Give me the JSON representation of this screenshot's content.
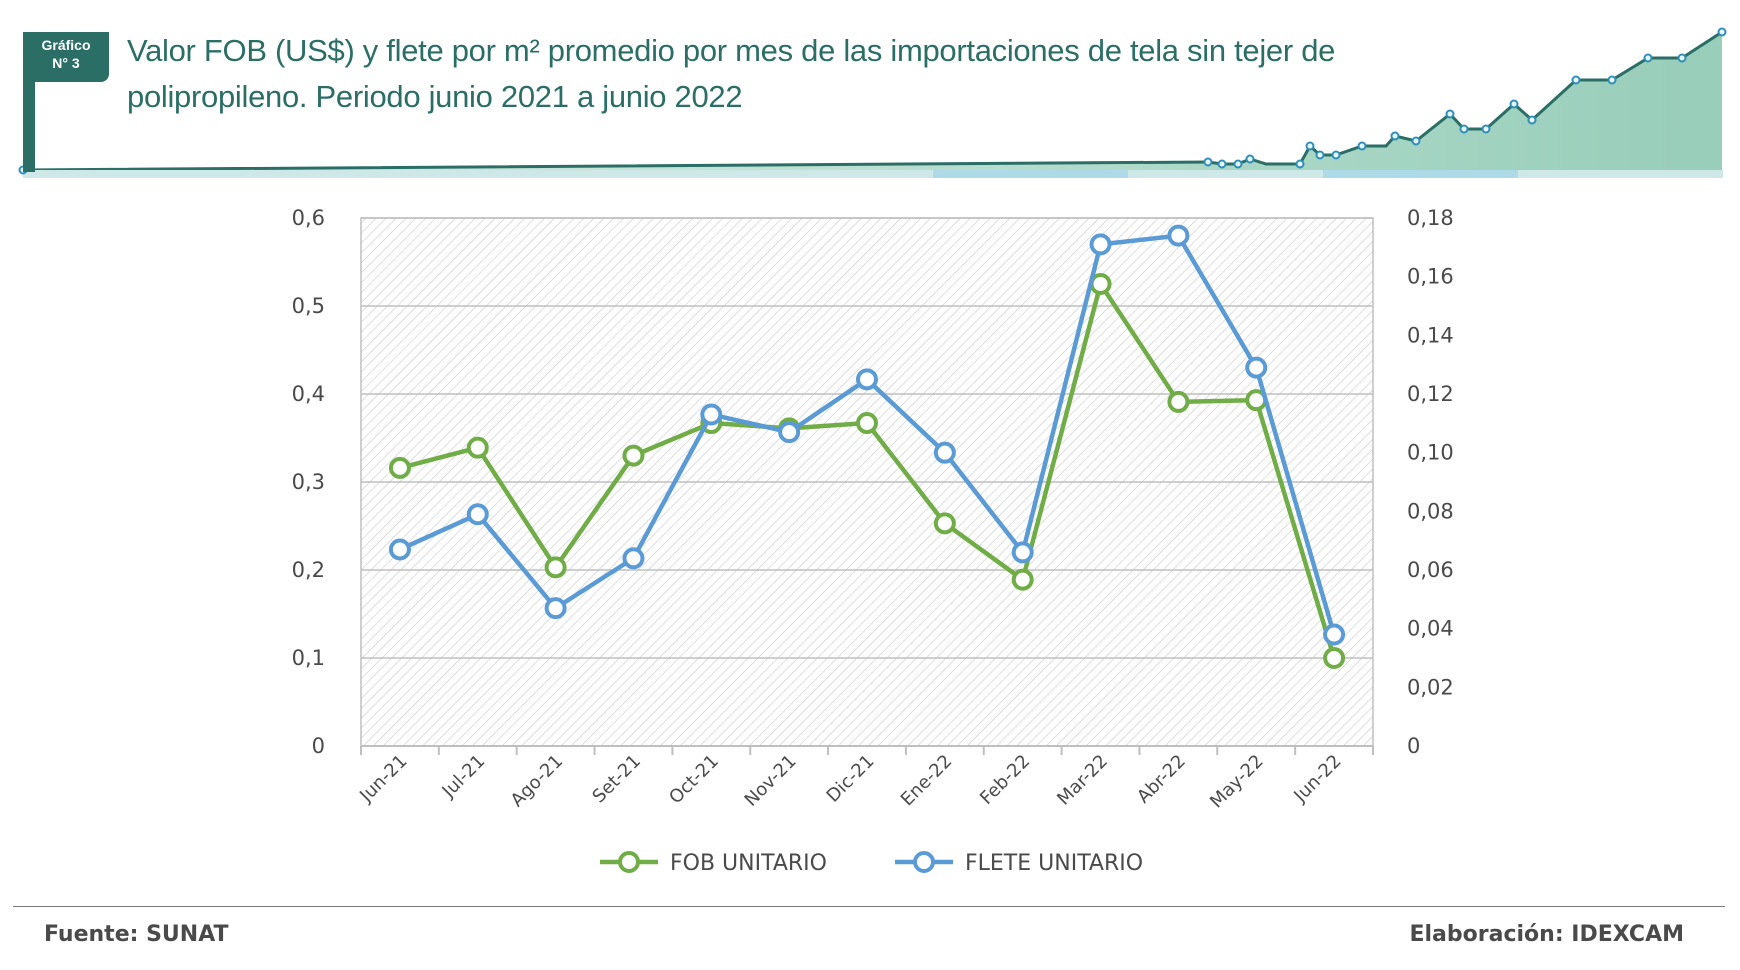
{
  "header": {
    "badge_line1": "Gráfico",
    "badge_line2": "N° 3",
    "title": "Valor FOB (US$) y flete por m² promedio por mes de las importaciones de tela sin tejer de polipropileno. Periodo junio 2021 a junio 2022"
  },
  "colors": {
    "brand": "#2a6e66",
    "fob": "#70ad47",
    "flete": "#5b9bd5",
    "deco_fill": "#8cc8b2",
    "deco_marker": "#2e8fb8"
  },
  "chart_data": {
    "type": "line",
    "title": "Valor FOB (US$) y flete por m² promedio por mes de las importaciones de tela sin tejer de polipropileno. Periodo junio 2021 a junio 2022",
    "xlabel": "",
    "ylabel": "",
    "categories": [
      "Jun-21",
      "Jul-21",
      "Ago-21",
      "Set-21",
      "Oct-21",
      "Nov-21",
      "Dic-21",
      "Ene-22",
      "Feb-22",
      "Mar-22",
      "Abr-22",
      "May-22",
      "Jun-22"
    ],
    "series": [
      {
        "name": "FOB UNITARIO",
        "axis": "left",
        "color": "#70ad47",
        "values": [
          0.316,
          0.339,
          0.203,
          0.33,
          0.367,
          0.361,
          0.367,
          0.253,
          0.189,
          0.525,
          0.391,
          0.393,
          0.1
        ]
      },
      {
        "name": "FLETE UNITARIO",
        "axis": "right",
        "color": "#5b9bd5",
        "values": [
          0.067,
          0.079,
          0.047,
          0.064,
          0.113,
          0.107,
          0.125,
          0.1,
          0.066,
          0.171,
          0.174,
          0.129,
          0.038
        ]
      }
    ],
    "y_left": {
      "range": [
        0,
        0.6
      ],
      "ticks": [
        "0",
        "0,1",
        "0,2",
        "0,3",
        "0,4",
        "0,5",
        "0,6"
      ],
      "tick_values": [
        0,
        0.1,
        0.2,
        0.3,
        0.4,
        0.5,
        0.6
      ]
    },
    "y_right": {
      "range": [
        0,
        0.18
      ],
      "ticks": [
        "0",
        "0,02",
        "0,04",
        "0,06",
        "0,08",
        "0,10",
        "0,12",
        "0,14",
        "0,16",
        "0,18"
      ],
      "tick_values": [
        0,
        0.02,
        0.04,
        0.06,
        0.08,
        0.1,
        0.12,
        0.14,
        0.16,
        0.18
      ]
    },
    "grid": true,
    "legend_position": "bottom-center",
    "legend": [
      "FOB UNITARIO",
      "FLETE UNITARIO"
    ]
  },
  "footer": {
    "source": "Fuente: SUNAT",
    "credit": "Elaboración: IDEXCAM"
  }
}
